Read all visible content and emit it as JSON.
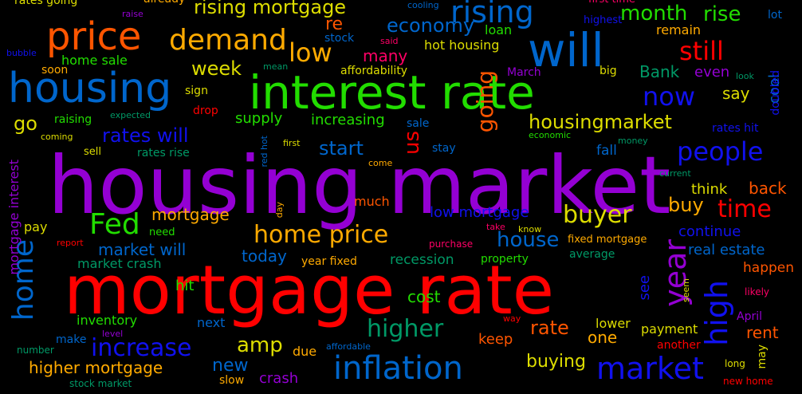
{
  "word_cloud": {
    "background": "#000000",
    "words": [
      {
        "text": "housing market",
        "color": "#9400d3"
      },
      {
        "text": "mortgage rate",
        "color": "#ff0000"
      },
      {
        "text": "interest rate",
        "color": "#22dd00"
      },
      {
        "text": "housing",
        "color": "#0066cc"
      },
      {
        "text": "price",
        "color": "#ff5500"
      },
      {
        "text": "will",
        "color": "#0066cc"
      },
      {
        "text": "demand",
        "color": "#ffaa00"
      },
      {
        "text": "rising",
        "color": "#0066cc"
      },
      {
        "text": "home",
        "color": "#0066cc"
      },
      {
        "text": "rising mortgage",
        "color": "#dddd00"
      },
      {
        "text": "low",
        "color": "#ffaa00"
      },
      {
        "text": "still",
        "color": "#ff0000"
      },
      {
        "text": "month",
        "color": "#22dd00"
      },
      {
        "text": "rise",
        "color": "#22dd00"
      },
      {
        "text": "inflation",
        "color": "#0066cc"
      },
      {
        "text": "market",
        "color": "#1111ee"
      },
      {
        "text": "year",
        "color": "#9400d3"
      },
      {
        "text": "high",
        "color": "#1111ee"
      },
      {
        "text": "Fed",
        "color": "#22dd00"
      },
      {
        "text": "home price",
        "color": "#ffaa00"
      },
      {
        "text": "housingmarket",
        "color": "#dddd00"
      },
      {
        "text": "buyer",
        "color": "#dddd00"
      },
      {
        "text": "people",
        "color": "#1111ee"
      },
      {
        "text": "now",
        "color": "#1111ee"
      },
      {
        "text": "going",
        "color": "#ff5500"
      },
      {
        "text": "increase",
        "color": "#1111ee"
      },
      {
        "text": "higher",
        "color": "#009966"
      },
      {
        "text": "time",
        "color": "#ff0000"
      },
      {
        "text": "economy",
        "color": "#0066cc"
      },
      {
        "text": "week",
        "color": "#dddd00"
      },
      {
        "text": "buy",
        "color": "#ffaa00"
      },
      {
        "text": "go",
        "color": "#dddd00"
      },
      {
        "text": "rates will",
        "color": "#1111ee"
      },
      {
        "text": "start",
        "color": "#0066cc"
      },
      {
        "text": "us",
        "color": "#ff0000"
      },
      {
        "text": "re",
        "color": "#ff5500"
      },
      {
        "text": "amp",
        "color": "#dddd00"
      },
      {
        "text": "house",
        "color": "#0066cc"
      },
      {
        "text": "rate",
        "color": "#ff5500"
      },
      {
        "text": "buying",
        "color": "#dddd00"
      },
      {
        "text": "higher mortgage",
        "color": "#ffaa00"
      },
      {
        "text": "new",
        "color": "#0066cc"
      },
      {
        "text": "crash",
        "color": "#9400d3"
      },
      {
        "text": "mortgage",
        "color": "#ffaa00"
      },
      {
        "text": "market will",
        "color": "#0066cc"
      },
      {
        "text": "today",
        "color": "#0066cc"
      },
      {
        "text": "cost",
        "color": "#22dd00"
      },
      {
        "text": "one",
        "color": "#ffaa00"
      },
      {
        "text": "say",
        "color": "#dddd00"
      },
      {
        "text": "Bank",
        "color": "#009966"
      },
      {
        "text": "many",
        "color": "#ff0066"
      },
      {
        "text": "supply",
        "color": "#22dd00"
      },
      {
        "text": "increasing",
        "color": "#22dd00"
      },
      {
        "text": "low mortgage",
        "color": "#1111ee"
      },
      {
        "text": "continue",
        "color": "#1111ee"
      },
      {
        "text": "real estate",
        "color": "#0066cc"
      },
      {
        "text": "rent",
        "color": "#ff5500"
      },
      {
        "text": "back",
        "color": "#ff5500"
      },
      {
        "text": "think",
        "color": "#dddd00"
      },
      {
        "text": "hit",
        "color": "#22dd00"
      },
      {
        "text": "cool",
        "color": "#0066cc"
      },
      {
        "text": "see",
        "color": "#1111ee"
      },
      {
        "text": "keep",
        "color": "#ff5500"
      },
      {
        "text": "happen",
        "color": "#ff5500"
      },
      {
        "text": "recession",
        "color": "#009966"
      },
      {
        "text": "year fixed",
        "color": "#ffaa00"
      },
      {
        "text": "fall",
        "color": "#0066cc"
      },
      {
        "text": "hot housing",
        "color": "#dddd00"
      },
      {
        "text": "home sale",
        "color": "#22dd00"
      },
      {
        "text": "remain",
        "color": "#ffaa00"
      },
      {
        "text": "loan",
        "color": "#22dd00"
      },
      {
        "text": "raising",
        "color": "#22dd00"
      },
      {
        "text": "affordability",
        "color": "#dddd00"
      },
      {
        "text": "rates going",
        "color": "#dddd00"
      },
      {
        "text": "already",
        "color": "#ffaa00"
      },
      {
        "text": "mortgage interest",
        "color": "#9400d3"
      },
      {
        "text": "inventory",
        "color": "#22dd00"
      },
      {
        "text": "next",
        "color": "#0066cc"
      },
      {
        "text": "payment",
        "color": "#dddd00"
      },
      {
        "text": "lower",
        "color": "#dddd00"
      },
      {
        "text": "due",
        "color": "#ffaa00"
      },
      {
        "text": "make",
        "color": "#0066cc"
      },
      {
        "text": "pay",
        "color": "#dddd00"
      },
      {
        "text": "need",
        "color": "#22dd00"
      },
      {
        "text": "market crash",
        "color": "#009966"
      },
      {
        "text": "even",
        "color": "#9400d3"
      },
      {
        "text": "doubled",
        "color": "#1111ee"
      },
      {
        "text": "rates hit",
        "color": "#1111ee"
      },
      {
        "text": "stock",
        "color": "#0066cc"
      },
      {
        "text": "lot",
        "color": "#0066cc"
      },
      {
        "text": "sign",
        "color": "#dddd00"
      },
      {
        "text": "drop",
        "color": "#ff0000"
      },
      {
        "text": "sale",
        "color": "#0066cc"
      },
      {
        "text": "stay",
        "color": "#0066cc"
      },
      {
        "text": "sell",
        "color": "#dddd00"
      },
      {
        "text": "rates rise",
        "color": "#009966"
      },
      {
        "text": "much",
        "color": "#ff5500"
      },
      {
        "text": "first",
        "color": "#dddd00"
      },
      {
        "text": "come",
        "color": "#ffaa00"
      },
      {
        "text": "big",
        "color": "#dddd00"
      },
      {
        "text": "March",
        "color": "#9400d3"
      },
      {
        "text": "money",
        "color": "#009966"
      },
      {
        "text": "economic",
        "color": "#22dd00"
      },
      {
        "text": "current",
        "color": "#009966"
      },
      {
        "text": "fixed mortgage",
        "color": "#ffaa00"
      },
      {
        "text": "property",
        "color": "#22dd00"
      },
      {
        "text": "average",
        "color": "#009966"
      },
      {
        "text": "purchase",
        "color": "#ff0066"
      },
      {
        "text": "take",
        "color": "#ff0066"
      },
      {
        "text": "know",
        "color": "#dddd00"
      },
      {
        "text": "report",
        "color": "#ff0000"
      },
      {
        "text": "day",
        "color": "#ffaa00"
      },
      {
        "text": "red hot",
        "color": "#0066cc"
      },
      {
        "text": "soon",
        "color": "#ffaa00"
      },
      {
        "text": "mean",
        "color": "#009966"
      },
      {
        "text": "look",
        "color": "#009966"
      },
      {
        "text": "highest",
        "color": "#1111ee"
      },
      {
        "text": "first time",
        "color": "#ff0066"
      },
      {
        "text": "cooling",
        "color": "#0066cc"
      },
      {
        "text": "said",
        "color": "#ff0066"
      },
      {
        "text": "raise",
        "color": "#9400d3"
      },
      {
        "text": "bubble",
        "color": "#1111ee"
      },
      {
        "text": "expected",
        "color": "#009966"
      },
      {
        "text": "coming",
        "color": "#dddd00"
      },
      {
        "text": "April",
        "color": "#9400d3"
      },
      {
        "text": "way",
        "color": "#ff0000"
      },
      {
        "text": "level",
        "color": "#9400d3"
      },
      {
        "text": "number",
        "color": "#009966"
      },
      {
        "text": "affordable",
        "color": "#0066cc"
      },
      {
        "text": "stock market",
        "color": "#009966"
      },
      {
        "text": "slow",
        "color": "#ffaa00"
      },
      {
        "text": "another",
        "color": "#ff0000"
      },
      {
        "text": "long",
        "color": "#dddd00"
      },
      {
        "text": "new home",
        "color": "#ff0000"
      },
      {
        "text": "may",
        "color": "#dddd00"
      },
      {
        "text": "seem",
        "color": "#dddd00"
      },
      {
        "text": "likely",
        "color": "#ff0066"
      }
    ]
  }
}
